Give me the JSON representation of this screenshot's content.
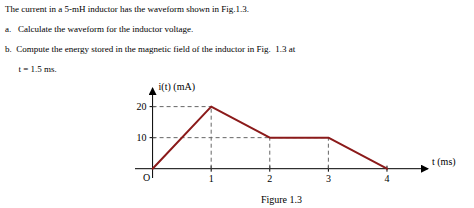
{
  "chart_data": {
    "type": "line",
    "annotations": [
      "The current in a 5-mH inductor has the waveform shown in Fig.1.3.",
      "a.   Calculate the waveform for the inductor voltage.",
      "b.  Compute the energy stored in the magnetic field of the inductor in Fig.  1.3 at",
      "      t = 1.5 ms."
    ],
    "caption": "Figure 1.3",
    "origin_label": "O",
    "x_label": "t (ms)",
    "y_label": "i(t) (mA)",
    "x": [
      0,
      1,
      2,
      3,
      4
    ],
    "series": [
      {
        "values": [
          0,
          20,
          10,
          10,
          0
        ],
        "color": "#8B1A1A",
        "line_style": "solid"
      },
      {
        "x": [
          1,
          1
        ],
        "values": [
          0,
          20
        ],
        "color": "#666666",
        "line_style": "dashed"
      },
      {
        "x": [
          0,
          1
        ],
        "values": [
          20,
          20
        ],
        "color": "#666666",
        "line_style": "dashed"
      },
      {
        "x": [
          2,
          2
        ],
        "values": [
          0,
          10
        ],
        "color": "#666666",
        "line_style": "dashed"
      },
      {
        "x": [
          0,
          3
        ],
        "values": [
          10,
          10
        ],
        "color": "#666666",
        "line_style": "dashed"
      },
      {
        "x": [
          3,
          3
        ],
        "values": [
          0,
          10
        ],
        "color": "#666666",
        "line_style": "dashed"
      }
    ],
    "xlim": [
      -0.3,
      4.7
    ],
    "ylim": [
      -3,
      26
    ],
    "xticks": [
      1,
      2,
      3,
      4
    ],
    "yticks": [
      10,
      20
    ],
    "grid": false
  }
}
